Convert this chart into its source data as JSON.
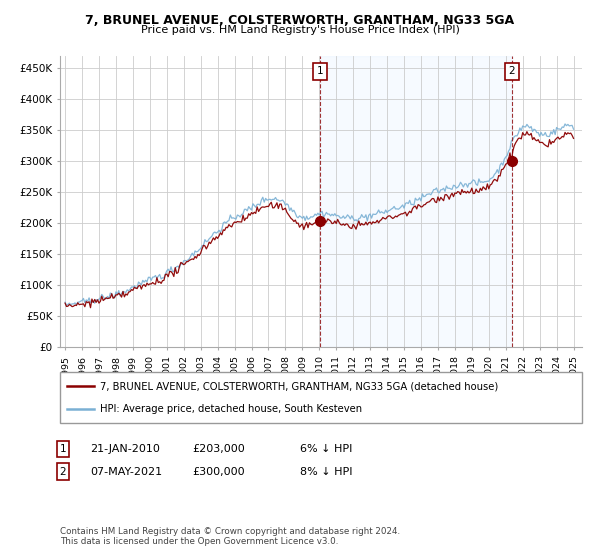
{
  "title": "7, BRUNEL AVENUE, COLSTERWORTH, GRANTHAM, NG33 5GA",
  "subtitle": "Price paid vs. HM Land Registry's House Price Index (HPI)",
  "ylabel_ticks": [
    "£0",
    "£50K",
    "£100K",
    "£150K",
    "£200K",
    "£250K",
    "£300K",
    "£350K",
    "£400K",
    "£450K"
  ],
  "ytick_values": [
    0,
    50000,
    100000,
    150000,
    200000,
    250000,
    300000,
    350000,
    400000,
    450000
  ],
  "ylim": [
    0,
    470000
  ],
  "xlim_start": 1994.7,
  "xlim_end": 2025.5,
  "legend_line1": "7, BRUNEL AVENUE, COLSTERWORTH, GRANTHAM, NG33 5GA (detached house)",
  "legend_line2": "HPI: Average price, detached house, South Kesteven",
  "ann1_date": "21-JAN-2010",
  "ann1_price": "£203,000",
  "ann1_pct": "6% ↓ HPI",
  "ann2_date": "07-MAY-2021",
  "ann2_price": "£300,000",
  "ann2_pct": "8% ↓ HPI",
  "footnote": "Contains HM Land Registry data © Crown copyright and database right 2024.\nThis data is licensed under the Open Government Licence v3.0.",
  "color_red": "#8b0000",
  "color_blue": "#7ab0d4",
  "color_grid": "#cccccc",
  "color_bg": "#ffffff",
  "color_shade": "#ddeeff",
  "point1_x": 2010.05,
  "point1_y": 203000,
  "point2_x": 2021.37,
  "point2_y": 300000
}
